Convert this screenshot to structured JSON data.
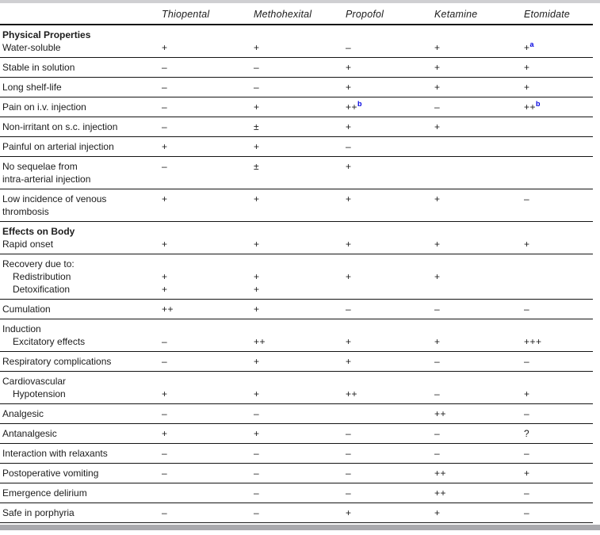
{
  "colors": {
    "page_bg": "#ffffff",
    "text": "#1c1c1c",
    "rule": "#141414",
    "top_band": "#cfcfd2",
    "bottom_band": "#a9a9ad",
    "footnote": "#0000e0"
  },
  "table": {
    "columns": [
      "",
      "Thiopental",
      "Methohexital",
      "Propofol",
      "Ketamine",
      "Etomidate"
    ],
    "footnote_refs": [
      "a",
      "b"
    ],
    "groups": [
      {
        "lines": [
          {
            "label": "Physical Properties",
            "bold": true,
            "indent": false,
            "values": [
              "",
              "",
              "",
              "",
              ""
            ]
          },
          {
            "label": "Water-soluble",
            "bold": false,
            "indent": false,
            "values": [
              "+",
              "+",
              "–",
              "+",
              "+^a"
            ]
          }
        ]
      },
      {
        "lines": [
          {
            "label": "Stable in solution",
            "bold": false,
            "indent": false,
            "values": [
              "–",
              "–",
              "+",
              "+",
              "+"
            ]
          }
        ]
      },
      {
        "lines": [
          {
            "label": "Long shelf-life",
            "bold": false,
            "indent": false,
            "values": [
              "–",
              "–",
              "+",
              "+",
              "+"
            ]
          }
        ]
      },
      {
        "lines": [
          {
            "label": "Pain on i.v. injection",
            "bold": false,
            "indent": false,
            "values": [
              "–",
              "+",
              "++^b",
              "–",
              "++^b"
            ]
          }
        ]
      },
      {
        "lines": [
          {
            "label": "Non-irritant on s.c. injection",
            "bold": false,
            "indent": false,
            "values": [
              "–",
              "±",
              "+",
              "+",
              ""
            ]
          }
        ]
      },
      {
        "lines": [
          {
            "label": "Painful on arterial injection",
            "bold": false,
            "indent": false,
            "values": [
              "+",
              "+",
              "–",
              "",
              ""
            ]
          }
        ]
      },
      {
        "lines": [
          {
            "label": "No sequelae from",
            "bold": false,
            "indent": false,
            "values": [
              "–",
              "±",
              "+",
              "",
              ""
            ]
          },
          {
            "label": "intra-arterial injection",
            "bold": false,
            "indent": false,
            "values": [
              "",
              "",
              "",
              "",
              ""
            ]
          }
        ]
      },
      {
        "lines": [
          {
            "label": "Low incidence of venous",
            "bold": false,
            "indent": false,
            "values": [
              "+",
              "+",
              "+",
              "+",
              "–"
            ]
          },
          {
            "label": "thrombosis",
            "bold": false,
            "indent": false,
            "values": [
              "",
              "",
              "",
              "",
              ""
            ]
          }
        ]
      },
      {
        "lines": [
          {
            "label": "Effects on Body",
            "bold": true,
            "indent": false,
            "values": [
              "",
              "",
              "",
              "",
              ""
            ]
          },
          {
            "label": "Rapid onset",
            "bold": false,
            "indent": false,
            "values": [
              "+",
              "+",
              "+",
              "+",
              "+"
            ]
          }
        ]
      },
      {
        "lines": [
          {
            "label": "Recovery due to:",
            "bold": false,
            "indent": false,
            "values": [
              "",
              "",
              "",
              "",
              ""
            ]
          },
          {
            "label": "Redistribution",
            "bold": false,
            "indent": true,
            "values": [
              "+",
              "+",
              "+",
              "+",
              ""
            ]
          },
          {
            "label": "Detoxification",
            "bold": false,
            "indent": true,
            "values": [
              "+",
              "+",
              "",
              "",
              ""
            ]
          }
        ]
      },
      {
        "lines": [
          {
            "label": "Cumulation",
            "bold": false,
            "indent": false,
            "values": [
              "++",
              "+",
              "–",
              "–",
              "–"
            ]
          }
        ]
      },
      {
        "lines": [
          {
            "label": "Induction",
            "bold": false,
            "indent": false,
            "values": [
              "",
              "",
              "",
              "",
              ""
            ]
          },
          {
            "label": "Excitatory effects",
            "bold": false,
            "indent": true,
            "values": [
              "–",
              "++",
              "+",
              "+",
              "+++"
            ]
          }
        ]
      },
      {
        "lines": [
          {
            "label": "Respiratory complications",
            "bold": false,
            "indent": false,
            "values": [
              "–",
              "+",
              "+",
              "–",
              "–"
            ]
          }
        ]
      },
      {
        "lines": [
          {
            "label": "Cardiovascular",
            "bold": false,
            "indent": false,
            "values": [
              "",
              "",
              "",
              "",
              ""
            ]
          },
          {
            "label": "Hypotension",
            "bold": false,
            "indent": true,
            "values": [
              "+",
              "+",
              "++",
              "–",
              "+"
            ]
          }
        ]
      },
      {
        "lines": [
          {
            "label": "Analgesic",
            "bold": false,
            "indent": false,
            "values": [
              "–",
              "–",
              "",
              "++",
              "–"
            ]
          }
        ]
      },
      {
        "lines": [
          {
            "label": "Antanalgesic",
            "bold": false,
            "indent": false,
            "values": [
              "+",
              "+",
              "–",
              "–",
              "?"
            ]
          }
        ]
      },
      {
        "lines": [
          {
            "label": "Interaction with relaxants",
            "bold": false,
            "indent": false,
            "values": [
              "–",
              "–",
              "–",
              "–",
              "–"
            ]
          }
        ]
      },
      {
        "lines": [
          {
            "label": "Postoperative vomiting",
            "bold": false,
            "indent": false,
            "values": [
              "–",
              "–",
              "–",
              "++",
              "+"
            ]
          }
        ]
      },
      {
        "lines": [
          {
            "label": "Emergence delirium",
            "bold": false,
            "indent": false,
            "values": [
              "",
              "–",
              "–",
              "++",
              "–"
            ]
          }
        ]
      },
      {
        "lines": [
          {
            "label": "Safe in porphyria",
            "bold": false,
            "indent": false,
            "values": [
              "–",
              "–",
              "+",
              "+",
              "–"
            ]
          }
        ]
      }
    ]
  }
}
